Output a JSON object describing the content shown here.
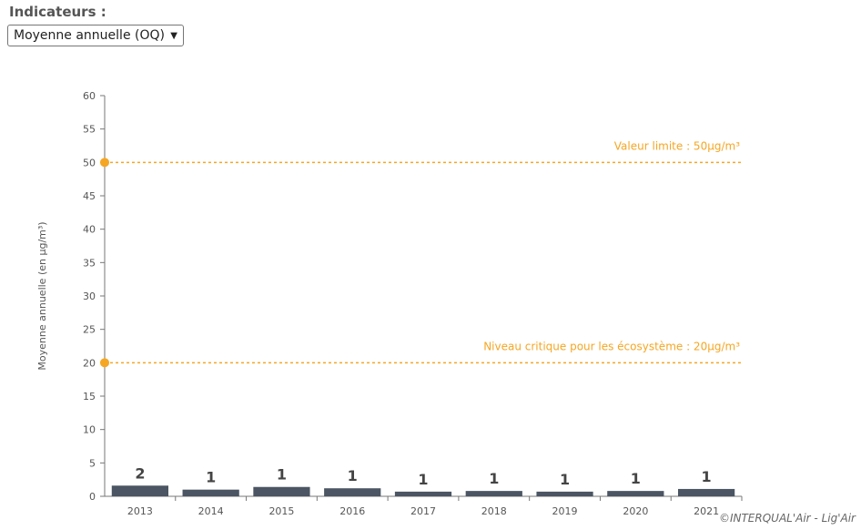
{
  "indicator": {
    "label": "Indicateurs :",
    "selected": "Moyenne annuelle (OQ)",
    "chevron_icon": "chevron-down-icon"
  },
  "chart_data": {
    "type": "bar",
    "categories": [
      "2013",
      "2014",
      "2015",
      "2016",
      "2017",
      "2018",
      "2019",
      "2020",
      "2021"
    ],
    "values": [
      1.6,
      1.0,
      1.4,
      1.2,
      0.7,
      0.8,
      0.7,
      0.8,
      1.1
    ],
    "data_labels": [
      "2",
      "1",
      "1",
      "1",
      "1",
      "1",
      "1",
      "1",
      "1"
    ],
    "ylabel": "Moyenne annuelle (en µg/m³)",
    "xlabel": "",
    "ylim": [
      0,
      60
    ],
    "yticks": [
      0,
      5,
      10,
      15,
      20,
      25,
      30,
      35,
      40,
      45,
      50,
      55,
      60
    ],
    "bar_color": "#4b5563",
    "reference_lines": [
      {
        "value": 50,
        "label": "Valeur limite : 50µg/m³",
        "color": "#f5a623"
      },
      {
        "value": 20,
        "label": "Niveau critique pour les écosystème : 20µg/m³",
        "color": "#f5a623"
      }
    ],
    "grid": false
  },
  "credit": "©INTERQUAL'Air - Lig'Air"
}
